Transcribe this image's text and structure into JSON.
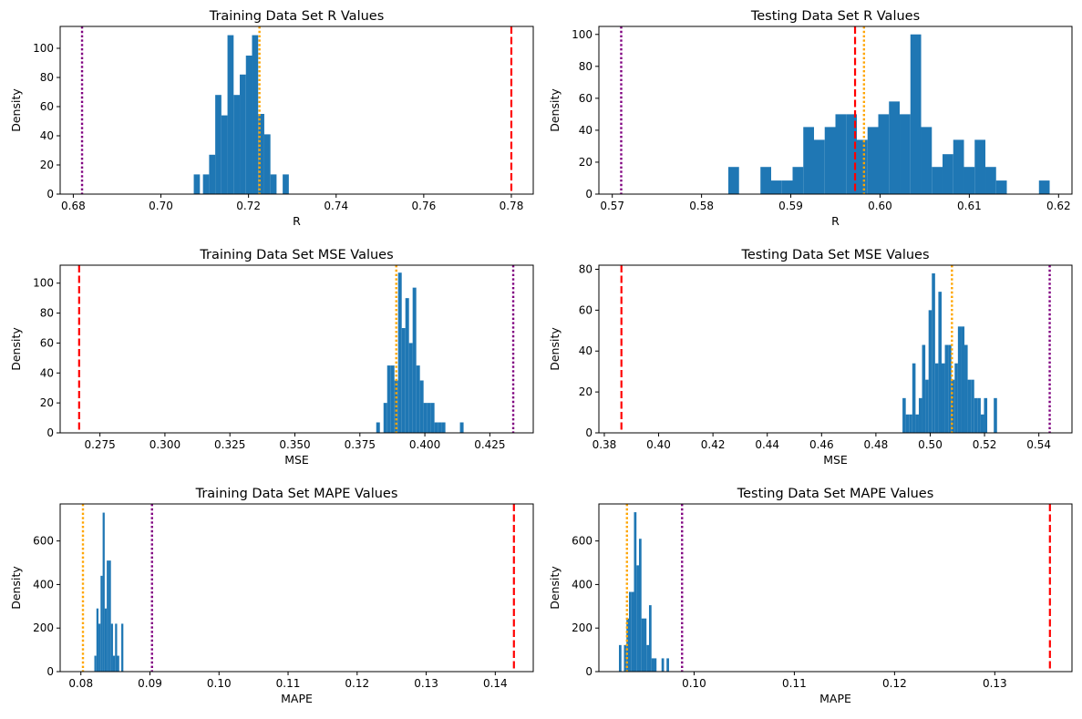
{
  "chart_data": [
    {
      "type": "histogram",
      "title": "Training Data Set R Values",
      "xlabel": "R",
      "ylabel": "Density",
      "xlim": [
        0.677,
        0.785
      ],
      "ylim": [
        0,
        115
      ],
      "xticks": [
        0.68,
        0.7,
        0.72,
        0.74,
        0.76,
        0.78
      ],
      "yticks": [
        0,
        20,
        40,
        60,
        80,
        100
      ],
      "bins": [
        {
          "x0": 0.7075,
          "x1": 0.7089,
          "value": 13.5
        },
        {
          "x0": 0.7096,
          "x1": 0.711,
          "value": 13.5
        },
        {
          "x0": 0.711,
          "x1": 0.7124,
          "value": 27
        },
        {
          "x0": 0.7124,
          "x1": 0.7138,
          "value": 68
        },
        {
          "x0": 0.7138,
          "x1": 0.7152,
          "value": 54
        },
        {
          "x0": 0.7152,
          "x1": 0.7166,
          "value": 109
        },
        {
          "x0": 0.7166,
          "x1": 0.718,
          "value": 68
        },
        {
          "x0": 0.718,
          "x1": 0.7194,
          "value": 82
        },
        {
          "x0": 0.7194,
          "x1": 0.7208,
          "value": 95
        },
        {
          "x0": 0.7208,
          "x1": 0.7222,
          "value": 109
        },
        {
          "x0": 0.7222,
          "x1": 0.7236,
          "value": 55
        },
        {
          "x0": 0.7236,
          "x1": 0.725,
          "value": 41
        },
        {
          "x0": 0.725,
          "x1": 0.7264,
          "value": 13.5
        },
        {
          "x0": 0.7278,
          "x1": 0.7292,
          "value": 13.5
        }
      ],
      "vlines": [
        {
          "x": 0.682,
          "color": "#800080",
          "style": "dotted"
        },
        {
          "x": 0.7225,
          "color": "#FFA500",
          "style": "dotted"
        },
        {
          "x": 0.78,
          "color": "#FF0000",
          "style": "dashed"
        }
      ]
    },
    {
      "type": "histogram",
      "title": "Testing Data Set R Values",
      "xlabel": "R",
      "ylabel": "Density",
      "xlim": [
        0.5685,
        0.6215
      ],
      "ylim": [
        0,
        105
      ],
      "xticks": [
        0.57,
        0.58,
        0.59,
        0.6,
        0.61,
        0.62
      ],
      "yticks": [
        0,
        20,
        40,
        60,
        80,
        100
      ],
      "bins": [
        {
          "x0": 0.583,
          "x1": 0.5842,
          "value": 17
        },
        {
          "x0": 0.5866,
          "x1": 0.5878,
          "value": 17
        },
        {
          "x0": 0.5878,
          "x1": 0.589,
          "value": 8.5
        },
        {
          "x0": 0.589,
          "x1": 0.5902,
          "value": 8.5
        },
        {
          "x0": 0.5902,
          "x1": 0.5914,
          "value": 17
        },
        {
          "x0": 0.5914,
          "x1": 0.5926,
          "value": 42
        },
        {
          "x0": 0.5926,
          "x1": 0.5938,
          "value": 34
        },
        {
          "x0": 0.5938,
          "x1": 0.595,
          "value": 42
        },
        {
          "x0": 0.595,
          "x1": 0.5962,
          "value": 50
        },
        {
          "x0": 0.5962,
          "x1": 0.5974,
          "value": 50
        },
        {
          "x0": 0.5974,
          "x1": 0.5986,
          "value": 34
        },
        {
          "x0": 0.5986,
          "x1": 0.5998,
          "value": 42
        },
        {
          "x0": 0.5998,
          "x1": 0.601,
          "value": 50
        },
        {
          "x0": 0.601,
          "x1": 0.6022,
          "value": 58
        },
        {
          "x0": 0.6022,
          "x1": 0.6034,
          "value": 50
        },
        {
          "x0": 0.6034,
          "x1": 0.6046,
          "value": 100
        },
        {
          "x0": 0.6046,
          "x1": 0.6058,
          "value": 42
        },
        {
          "x0": 0.6058,
          "x1": 0.607,
          "value": 17
        },
        {
          "x0": 0.607,
          "x1": 0.6082,
          "value": 25
        },
        {
          "x0": 0.6082,
          "x1": 0.6094,
          "value": 34
        },
        {
          "x0": 0.6094,
          "x1": 0.6106,
          "value": 17
        },
        {
          "x0": 0.6106,
          "x1": 0.6118,
          "value": 34
        },
        {
          "x0": 0.6118,
          "x1": 0.613,
          "value": 17
        },
        {
          "x0": 0.613,
          "x1": 0.6142,
          "value": 8.5
        },
        {
          "x0": 0.6178,
          "x1": 0.619,
          "value": 8.5
        }
      ],
      "vlines": [
        {
          "x": 0.571,
          "color": "#800080",
          "style": "dotted"
        },
        {
          "x": 0.5972,
          "color": "#FF0000",
          "style": "dashed"
        },
        {
          "x": 0.5982,
          "color": "#FFA500",
          "style": "dotted"
        }
      ]
    },
    {
      "type": "histogram",
      "title": "Training Data Set MSE Values",
      "xlabel": "MSE",
      "ylabel": "Density",
      "xlim": [
        0.2597,
        0.4417
      ],
      "ylim": [
        0,
        112
      ],
      "xticks": [
        0.275,
        0.3,
        0.325,
        0.35,
        0.375,
        0.4,
        0.425
      ],
      "yticks": [
        0,
        20,
        40,
        60,
        80,
        100
      ],
      "bins": [
        {
          "x0": 0.3813,
          "x1": 0.3827,
          "value": 7
        },
        {
          "x0": 0.3841,
          "x1": 0.3855,
          "value": 20
        },
        {
          "x0": 0.3855,
          "x1": 0.3869,
          "value": 45
        },
        {
          "x0": 0.3869,
          "x1": 0.3883,
          "value": 45
        },
        {
          "x0": 0.3883,
          "x1": 0.3897,
          "value": 35
        },
        {
          "x0": 0.3897,
          "x1": 0.3911,
          "value": 107
        },
        {
          "x0": 0.3911,
          "x1": 0.3925,
          "value": 70
        },
        {
          "x0": 0.3925,
          "x1": 0.3939,
          "value": 90
        },
        {
          "x0": 0.3939,
          "x1": 0.3953,
          "value": 60
        },
        {
          "x0": 0.3953,
          "x1": 0.3967,
          "value": 97
        },
        {
          "x0": 0.3967,
          "x1": 0.3981,
          "value": 45
        },
        {
          "x0": 0.3981,
          "x1": 0.3995,
          "value": 35
        },
        {
          "x0": 0.3995,
          "x1": 0.4009,
          "value": 20
        },
        {
          "x0": 0.4009,
          "x1": 0.4023,
          "value": 20
        },
        {
          "x0": 0.4023,
          "x1": 0.4037,
          "value": 20
        },
        {
          "x0": 0.4037,
          "x1": 0.4051,
          "value": 7
        },
        {
          "x0": 0.4051,
          "x1": 0.4065,
          "value": 7
        },
        {
          "x0": 0.4065,
          "x1": 0.4079,
          "value": 7
        },
        {
          "x0": 0.4135,
          "x1": 0.4149,
          "value": 7
        }
      ],
      "vlines": [
        {
          "x": 0.267,
          "color": "#FF0000",
          "style": "dashed"
        },
        {
          "x": 0.389,
          "color": "#FFA500",
          "style": "dotted"
        },
        {
          "x": 0.434,
          "color": "#800080",
          "style": "dotted"
        }
      ]
    },
    {
      "type": "histogram",
      "title": "Testing Data Set MSE Values",
      "xlabel": "MSE",
      "ylabel": "Density",
      "xlim": [
        0.378,
        0.5522
      ],
      "ylim": [
        0,
        82
      ],
      "xticks": [
        0.38,
        0.4,
        0.42,
        0.44,
        0.46,
        0.48,
        0.5,
        0.52,
        0.54
      ],
      "yticks": [
        0,
        20,
        40,
        60,
        80
      ],
      "bins": [
        {
          "x0": 0.4898,
          "x1": 0.491,
          "value": 17
        },
        {
          "x0": 0.491,
          "x1": 0.4922,
          "value": 9
        },
        {
          "x0": 0.4922,
          "x1": 0.4934,
          "value": 9
        },
        {
          "x0": 0.4934,
          "x1": 0.4946,
          "value": 34
        },
        {
          "x0": 0.4946,
          "x1": 0.4958,
          "value": 9
        },
        {
          "x0": 0.4958,
          "x1": 0.497,
          "value": 17
        },
        {
          "x0": 0.497,
          "x1": 0.4982,
          "value": 43
        },
        {
          "x0": 0.4982,
          "x1": 0.4994,
          "value": 26
        },
        {
          "x0": 0.4994,
          "x1": 0.5006,
          "value": 60
        },
        {
          "x0": 0.5006,
          "x1": 0.5018,
          "value": 78
        },
        {
          "x0": 0.5018,
          "x1": 0.503,
          "value": 34
        },
        {
          "x0": 0.503,
          "x1": 0.5042,
          "value": 69
        },
        {
          "x0": 0.5042,
          "x1": 0.5054,
          "value": 34
        },
        {
          "x0": 0.5054,
          "x1": 0.5066,
          "value": 43
        },
        {
          "x0": 0.5066,
          "x1": 0.5078,
          "value": 43
        },
        {
          "x0": 0.5078,
          "x1": 0.509,
          "value": 26
        },
        {
          "x0": 0.509,
          "x1": 0.5102,
          "value": 34
        },
        {
          "x0": 0.5102,
          "x1": 0.5114,
          "value": 52
        },
        {
          "x0": 0.5114,
          "x1": 0.5126,
          "value": 52
        },
        {
          "x0": 0.5126,
          "x1": 0.5138,
          "value": 43
        },
        {
          "x0": 0.5138,
          "x1": 0.515,
          "value": 26
        },
        {
          "x0": 0.515,
          "x1": 0.5162,
          "value": 26
        },
        {
          "x0": 0.5162,
          "x1": 0.5174,
          "value": 17
        },
        {
          "x0": 0.5174,
          "x1": 0.5186,
          "value": 17
        },
        {
          "x0": 0.5186,
          "x1": 0.5198,
          "value": 9
        },
        {
          "x0": 0.5198,
          "x1": 0.521,
          "value": 17
        },
        {
          "x0": 0.5234,
          "x1": 0.5246,
          "value": 17
        }
      ],
      "vlines": [
        {
          "x": 0.3863,
          "color": "#FF0000",
          "style": "dashed"
        },
        {
          "x": 0.508,
          "color": "#FFA500",
          "style": "dotted"
        },
        {
          "x": 0.544,
          "color": "#800080",
          "style": "dotted"
        }
      ]
    },
    {
      "type": "histogram",
      "title": "Training Data Set MAPE Values",
      "xlabel": "MAPE",
      "ylabel": "Density",
      "xlim": [
        0.077,
        0.1455
      ],
      "ylim": [
        0,
        770
      ],
      "xticks": [
        0.08,
        0.09,
        0.1,
        0.11,
        0.12,
        0.13,
        0.14
      ],
      "yticks": [
        0,
        200,
        400,
        600
      ],
      "bins": [
        {
          "x0": 0.08195,
          "x1": 0.08225,
          "value": 73
        },
        {
          "x0": 0.08225,
          "x1": 0.08255,
          "value": 290
        },
        {
          "x0": 0.08255,
          "x1": 0.08285,
          "value": 220
        },
        {
          "x0": 0.08285,
          "x1": 0.08315,
          "value": 440
        },
        {
          "x0": 0.08315,
          "x1": 0.08345,
          "value": 730
        },
        {
          "x0": 0.08345,
          "x1": 0.08375,
          "value": 290
        },
        {
          "x0": 0.08375,
          "x1": 0.08405,
          "value": 510
        },
        {
          "x0": 0.08405,
          "x1": 0.08435,
          "value": 510
        },
        {
          "x0": 0.08435,
          "x1": 0.08465,
          "value": 220
        },
        {
          "x0": 0.08465,
          "x1": 0.08495,
          "value": 73
        },
        {
          "x0": 0.08495,
          "x1": 0.08525,
          "value": 220
        },
        {
          "x0": 0.08525,
          "x1": 0.08555,
          "value": 73
        },
        {
          "x0": 0.08585,
          "x1": 0.08615,
          "value": 220
        }
      ],
      "vlines": [
        {
          "x": 0.0803,
          "color": "#FFA500",
          "style": "dotted"
        },
        {
          "x": 0.0903,
          "color": "#800080",
          "style": "dotted"
        },
        {
          "x": 0.1427,
          "color": "#FF0000",
          "style": "dashed"
        }
      ]
    },
    {
      "type": "histogram",
      "title": "Testing Data Set MAPE Values",
      "xlabel": "MAPE",
      "ylabel": "Density",
      "xlim": [
        0.0905,
        0.1377
      ],
      "ylim": [
        0,
        770
      ],
      "xticks": [
        0.1,
        0.11,
        0.12,
        0.13
      ],
      "yticks": [
        0,
        200,
        400,
        600
      ],
      "bins": [
        {
          "x0": 0.0925,
          "x1": 0.09275,
          "value": 122
        },
        {
          "x0": 0.093,
          "x1": 0.09325,
          "value": 122
        },
        {
          "x0": 0.09325,
          "x1": 0.0935,
          "value": 244
        },
        {
          "x0": 0.0935,
          "x1": 0.09375,
          "value": 366
        },
        {
          "x0": 0.09375,
          "x1": 0.094,
          "value": 366
        },
        {
          "x0": 0.094,
          "x1": 0.09425,
          "value": 732
        },
        {
          "x0": 0.09425,
          "x1": 0.0945,
          "value": 488
        },
        {
          "x0": 0.0945,
          "x1": 0.09475,
          "value": 610
        },
        {
          "x0": 0.09475,
          "x1": 0.095,
          "value": 244
        },
        {
          "x0": 0.095,
          "x1": 0.09525,
          "value": 244
        },
        {
          "x0": 0.09525,
          "x1": 0.0955,
          "value": 122
        },
        {
          "x0": 0.0955,
          "x1": 0.09575,
          "value": 305
        },
        {
          "x0": 0.09575,
          "x1": 0.096,
          "value": 61
        },
        {
          "x0": 0.096,
          "x1": 0.09625,
          "value": 61
        },
        {
          "x0": 0.09675,
          "x1": 0.097,
          "value": 61
        },
        {
          "x0": 0.09725,
          "x1": 0.0975,
          "value": 61
        }
      ],
      "vlines": [
        {
          "x": 0.0933,
          "color": "#FFA500",
          "style": "dotted"
        },
        {
          "x": 0.0988,
          "color": "#800080",
          "style": "dotted"
        },
        {
          "x": 0.1355,
          "color": "#FF0000",
          "style": "dashed"
        }
      ]
    }
  ],
  "colors": {
    "bar": "#1f77b4",
    "axis": "#000000",
    "background": "#ffffff"
  }
}
